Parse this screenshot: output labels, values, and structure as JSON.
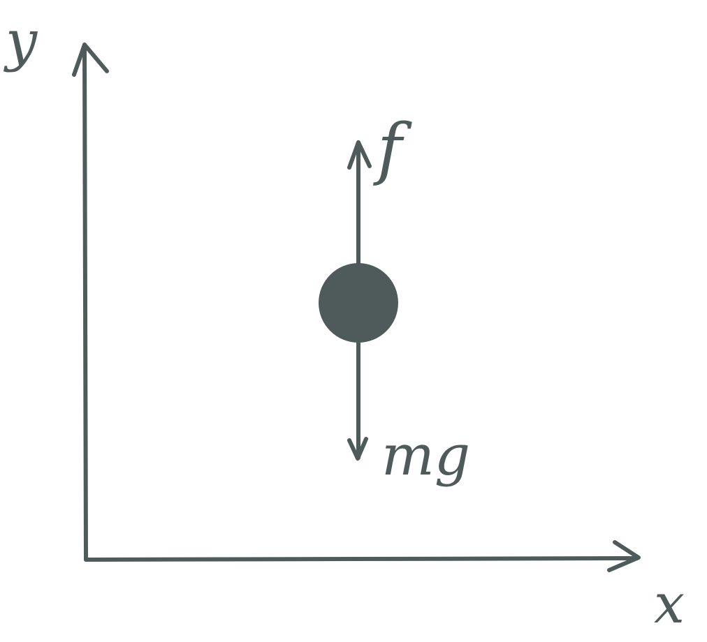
{
  "colors": {
    "ink": "#4F5B5A",
    "background": "#FFFFFF"
  },
  "labels": {
    "y_axis": "y",
    "x_axis": "x",
    "up_force": "f",
    "down_force": "mg"
  }
}
